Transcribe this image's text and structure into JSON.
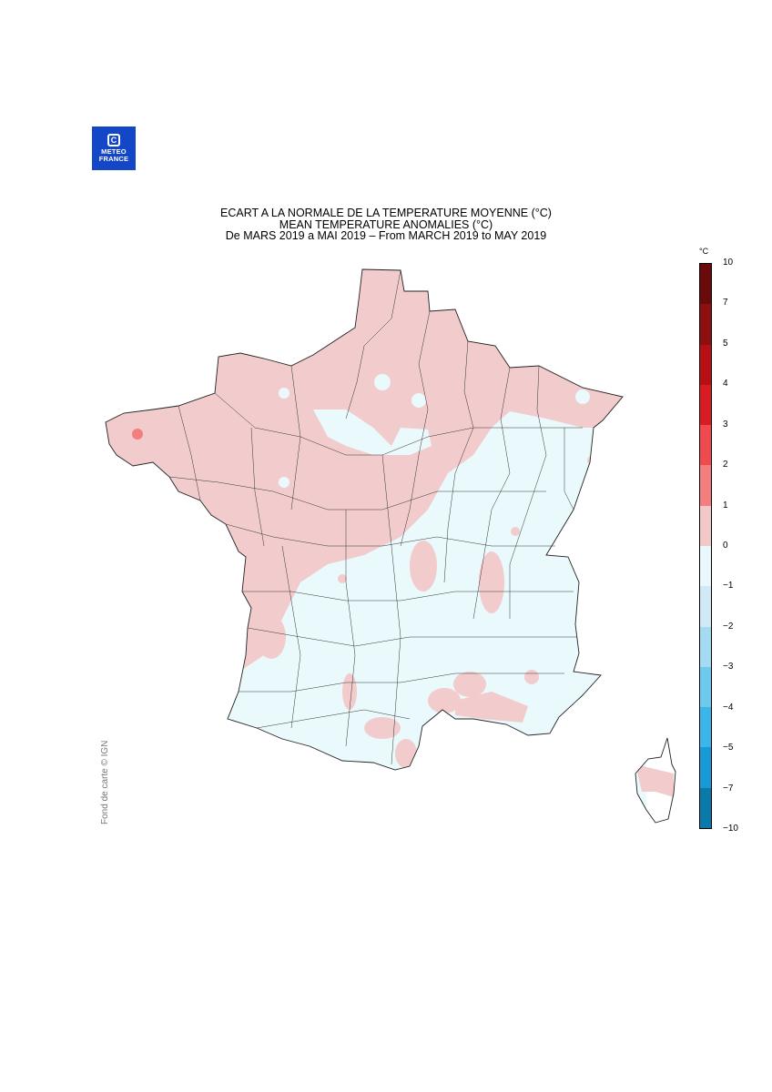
{
  "logo": {
    "line1": "METEO",
    "line2": "FRANCE",
    "glyph": "C"
  },
  "title": {
    "line1": "ECART A LA NORMALE DE LA TEMPERATURE MOYENNE (°C)",
    "line2": "MEAN TEMPERATURE ANOMALIES (°C)",
    "line3": "De MARS 2019 a MAI 2019 – From MARCH 2019 to MAY 2019"
  },
  "credit": "Fond de carte © IGN",
  "legend": {
    "unit": "°C",
    "ticks": [
      "10",
      "7",
      "5",
      "4",
      "3",
      "2",
      "1",
      "0",
      "−1",
      "−2",
      "−3",
      "−4",
      "−5",
      "−7",
      "−10"
    ],
    "colors": [
      "#6b0a0a",
      "#8e0f0f",
      "#b80f14",
      "#d81c22",
      "#f0494f",
      "#f47d7d",
      "#f2c8c8",
      "#e8f8fc",
      "#cfe9f6",
      "#a3dcf2",
      "#6dcaee",
      "#3bb6ea",
      "#179bd6",
      "#0a7aaa",
      "#0b5a80"
    ]
  },
  "map": {
    "region": "France",
    "colors": {
      "positive": "#f2cccc",
      "negative": "#e9f9fc",
      "hot_spot": "#f47d7d",
      "border": "#222222"
    }
  }
}
